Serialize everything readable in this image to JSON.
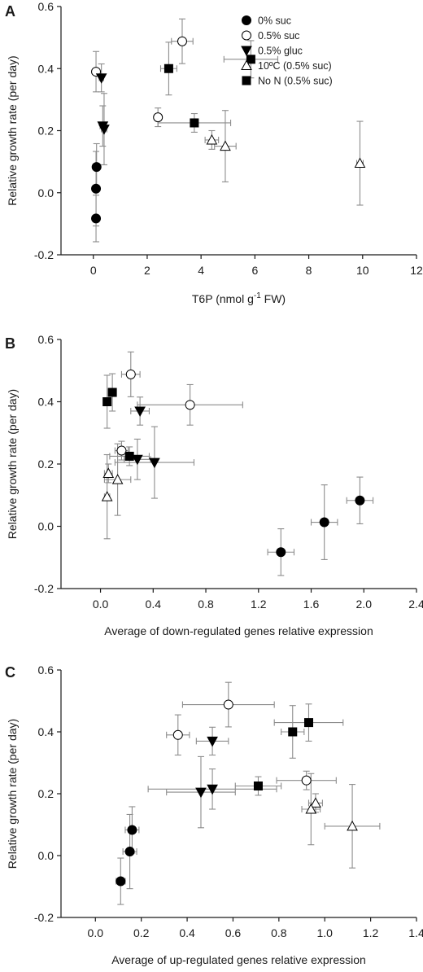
{
  "markers": {
    "filled_circle": "#000000",
    "open_fill": "#ffffff",
    "error_bar_color": "#8c8c8c"
  },
  "chart_data": [
    {
      "type": "scatter",
      "panel": "A",
      "xlabel": "T6P (nmol g",
      "xlabel_sup": "-1",
      "xlabel_tail": " FW)",
      "ylabel": "Relative growth rate (per day)",
      "xlim": [
        -1.2,
        12
      ],
      "ylim": [
        -0.2,
        0.6
      ],
      "xticks": [
        "0",
        "2",
        "4",
        "6",
        "8",
        "10",
        "12"
      ],
      "yticks": [
        "-0.2",
        "0.0",
        "0.2",
        "0.4",
        "0.6"
      ],
      "legend_position": "top-right",
      "series": [
        {
          "name": "0% suc",
          "marker": "circle-filled",
          "points": [
            {
              "x": 0.1,
              "y": 0.013,
              "xerr": 0.03,
              "yerr": 0.12
            },
            {
              "x": 0.12,
              "y": 0.083,
              "xerr": 0.03,
              "yerr": 0.075
            },
            {
              "x": 0.1,
              "y": -0.083,
              "xerr": 0.03,
              "yerr": 0.075
            }
          ]
        },
        {
          "name": "0.5% suc",
          "marker": "circle-open",
          "points": [
            {
              "x": 0.1,
              "y": 0.39,
              "xerr": 0.05,
              "yerr": 0.065
            },
            {
              "x": 3.3,
              "y": 0.488,
              "xerr": 0.4,
              "yerr": 0.072
            },
            {
              "x": 2.4,
              "y": 0.243,
              "xerr": 0.1,
              "yerr": 0.03
            }
          ]
        },
        {
          "name": "0.5% gluc",
          "marker": "triangle-down-filled",
          "points": [
            {
              "x": 0.3,
              "y": 0.37,
              "xerr": 0.08,
              "yerr": 0.045
            },
            {
              "x": 0.35,
              "y": 0.215,
              "xerr": 0.1,
              "yerr": 0.065
            },
            {
              "x": 0.4,
              "y": 0.205,
              "xerr": 0.1,
              "yerr": 0.115
            }
          ]
        },
        {
          "name": "10ºC (0.5% suc)",
          "marker": "triangle-up-open",
          "points": [
            {
              "x": 4.4,
              "y": 0.17,
              "xerr": 0.25,
              "yerr": 0.03
            },
            {
              "x": 4.9,
              "y": 0.15,
              "xerr": 0.4,
              "yerr": 0.115
            },
            {
              "x": 9.9,
              "y": 0.095,
              "xerr": 0.12,
              "yerr": 0.135
            }
          ]
        },
        {
          "name": "No N (0.5% suc)",
          "marker": "square-filled",
          "points": [
            {
              "x": 2.8,
              "y": 0.4,
              "xerr": 0.3,
              "yerr": 0.085
            },
            {
              "x": 3.75,
              "y": 0.225,
              "xerr": 1.35,
              "yerr": 0.03
            },
            {
              "x": 5.85,
              "y": 0.43,
              "xerr": 1.0,
              "yerr": 0.06
            }
          ]
        }
      ]
    },
    {
      "type": "scatter",
      "panel": "B",
      "xlabel": "Average of down-regulated genes relative expression",
      "ylabel": "Relative growth rate (per day)",
      "xlim": [
        -0.3,
        2.4
      ],
      "ylim": [
        -0.2,
        0.6
      ],
      "xticks": [
        "0.0",
        "0.4",
        "0.8",
        "1.2",
        "1.6",
        "2.0",
        "2.4"
      ],
      "yticks": [
        "-0.2",
        "0.0",
        "0.2",
        "0.4",
        "0.6"
      ],
      "series": [
        {
          "name": "0% suc",
          "marker": "circle-filled",
          "points": [
            {
              "x": 1.37,
              "y": -0.083,
              "xerr": 0.1,
              "yerr": 0.075
            },
            {
              "x": 1.7,
              "y": 0.013,
              "xerr": 0.1,
              "yerr": 0.12
            },
            {
              "x": 1.97,
              "y": 0.083,
              "xerr": 0.1,
              "yerr": 0.075
            }
          ]
        },
        {
          "name": "0.5% suc",
          "marker": "circle-open",
          "points": [
            {
              "x": 0.23,
              "y": 0.488,
              "xerr": 0.07,
              "yerr": 0.072
            },
            {
              "x": 0.68,
              "y": 0.39,
              "xerr": 0.4,
              "yerr": 0.065
            },
            {
              "x": 0.16,
              "y": 0.243,
              "xerr": 0.05,
              "yerr": 0.03
            }
          ]
        },
        {
          "name": "0.5% gluc",
          "marker": "triangle-down-filled",
          "points": [
            {
              "x": 0.3,
              "y": 0.37,
              "xerr": 0.07,
              "yerr": 0.045
            },
            {
              "x": 0.28,
              "y": 0.215,
              "xerr": 0.1,
              "yerr": 0.065
            },
            {
              "x": 0.41,
              "y": 0.205,
              "xerr": 0.3,
              "yerr": 0.115
            }
          ]
        },
        {
          "name": "10ºC (0.5% suc)",
          "marker": "triangle-up-open",
          "points": [
            {
              "x": 0.06,
              "y": 0.17,
              "xerr": 0.03,
              "yerr": 0.03
            },
            {
              "x": 0.13,
              "y": 0.15,
              "xerr": 0.1,
              "yerr": 0.115
            },
            {
              "x": 0.05,
              "y": 0.095,
              "xerr": 0.02,
              "yerr": 0.135
            }
          ]
        },
        {
          "name": "No N (0.5% suc)",
          "marker": "square-filled",
          "points": [
            {
              "x": 0.05,
              "y": 0.4,
              "xerr": 0.02,
              "yerr": 0.085
            },
            {
              "x": 0.09,
              "y": 0.43,
              "xerr": 0.03,
              "yerr": 0.06
            },
            {
              "x": 0.22,
              "y": 0.225,
              "xerr": 0.15,
              "yerr": 0.03
            }
          ]
        }
      ]
    },
    {
      "type": "scatter",
      "panel": "C",
      "xlabel": "Average of up-regulated genes relative expression",
      "ylabel": "Relative growth rate (per day)",
      "xlim": [
        -0.15,
        1.4
      ],
      "ylim": [
        -0.2,
        0.6
      ],
      "xticks": [
        "0.0",
        "0.2",
        "0.4",
        "0.6",
        "0.8",
        "1.0",
        "1.2",
        "1.4"
      ],
      "yticks": [
        "-0.2",
        "0.0",
        "0.2",
        "0.4",
        "0.6"
      ],
      "series": [
        {
          "name": "0% suc",
          "marker": "circle-filled",
          "points": [
            {
              "x": 0.11,
              "y": -0.083,
              "xerr": 0.02,
              "yerr": 0.075
            },
            {
              "x": 0.15,
              "y": 0.013,
              "xerr": 0.03,
              "yerr": 0.12
            },
            {
              "x": 0.16,
              "y": 0.083,
              "xerr": 0.03,
              "yerr": 0.075
            }
          ]
        },
        {
          "name": "0.5% suc",
          "marker": "circle-open",
          "points": [
            {
              "x": 0.36,
              "y": 0.39,
              "xerr": 0.05,
              "yerr": 0.065
            },
            {
              "x": 0.58,
              "y": 0.488,
              "xerr": 0.2,
              "yerr": 0.072
            },
            {
              "x": 0.92,
              "y": 0.243,
              "xerr": 0.13,
              "yerr": 0.03
            }
          ]
        },
        {
          "name": "0.5% gluc",
          "marker": "triangle-down-filled",
          "points": [
            {
              "x": 0.51,
              "y": 0.37,
              "xerr": 0.07,
              "yerr": 0.045
            },
            {
              "x": 0.51,
              "y": 0.215,
              "xerr": 0.28,
              "yerr": 0.065
            },
            {
              "x": 0.46,
              "y": 0.205,
              "xerr": 0.15,
              "yerr": 0.115
            }
          ]
        },
        {
          "name": "10ºC (0.5% suc)",
          "marker": "triangle-up-open",
          "points": [
            {
              "x": 0.96,
              "y": 0.17,
              "xerr": 0.03,
              "yerr": 0.03
            },
            {
              "x": 0.94,
              "y": 0.15,
              "xerr": 0.04,
              "yerr": 0.115
            },
            {
              "x": 1.12,
              "y": 0.095,
              "xerr": 0.12,
              "yerr": 0.135
            }
          ]
        },
        {
          "name": "No N (0.5% suc)",
          "marker": "square-filled",
          "points": [
            {
              "x": 0.86,
              "y": 0.4,
              "xerr": 0.05,
              "yerr": 0.085
            },
            {
              "x": 0.93,
              "y": 0.43,
              "xerr": 0.15,
              "yerr": 0.06
            },
            {
              "x": 0.71,
              "y": 0.225,
              "xerr": 0.1,
              "yerr": 0.03
            }
          ]
        }
      ]
    }
  ]
}
